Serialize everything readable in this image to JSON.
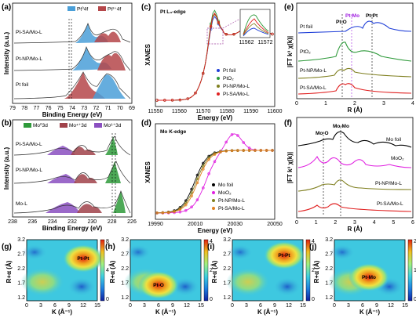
{
  "panels": {
    "a": {
      "label": "(a)",
      "xlabel": "Binding Energy (eV)",
      "ylabel": "Intensity (a.u.)",
      "xticks": [
        "79",
        "78",
        "77",
        "76",
        "75",
        "74",
        "73",
        "72",
        "71",
        "70",
        "69"
      ],
      "legend": [
        "Pt⁰4f",
        "Pt²⁺4f"
      ],
      "samples": [
        "Pt-SA/Mo-L",
        "Pt-NP/Mo-L",
        "Pt foil"
      ]
    },
    "b": {
      "label": "(b)",
      "xlabel": "Binding Energy (eV)",
      "ylabel": "Intensity (a.u.)",
      "xticks": [
        "238",
        "236",
        "234",
        "232",
        "230",
        "228",
        "226"
      ],
      "legend": [
        "Mo⁰3d",
        "Mo⁴⁺3d",
        "Mo⁶⁺3d"
      ],
      "samples": [
        "Pt-SA/Mo-L",
        "Pt-NP/Mo-L",
        "Mo-L"
      ]
    },
    "c": {
      "label": "(c)",
      "title": "Pt L₃-edge",
      "xlabel": "Energy (eV)",
      "ylabel": "XANES",
      "xticks": [
        "11550",
        "11560",
        "11570",
        "11580",
        "11590",
        "11600"
      ],
      "inset_ticks": [
        "11562",
        "11572"
      ],
      "legend": [
        "Pt foil",
        "PtO₂",
        "Pt-NP/Mo-L",
        "Pt-SA/Mo-L"
      ]
    },
    "d": {
      "label": "(d)",
      "title": "Mo K-edge",
      "xlabel": "Energy (eV)",
      "ylabel": "XANES",
      "xticks": [
        "19990",
        "20010",
        "20030",
        "20050"
      ],
      "legend": [
        "Mo foil",
        "MoO₂",
        "Pt-NP/Mo-L",
        "Pt-SA/Mo-L"
      ]
    },
    "e": {
      "label": "(e)",
      "xlabel": "R (Å)",
      "ylabel": "|FT k³ χ(k)|",
      "xticks": [
        "0",
        "1",
        "2",
        "3",
        "4"
      ],
      "markers": [
        "Pt-O",
        "Pt-Mo",
        "Pt-Pt"
      ],
      "samples": [
        "Pt foil",
        "PtO₂",
        "Pt-NP/Mo-L",
        "Pt-SA/Mo-L"
      ]
    },
    "f": {
      "label": "(f)",
      "xlabel": "R (Å)",
      "ylabel": "|FT k³ χ(k)|",
      "xticks": [
        "0",
        "1",
        "2",
        "3",
        "4",
        "5",
        "6"
      ],
      "markers": [
        "Mo-O",
        "Mo-Mo"
      ],
      "samples": [
        "Mo foil",
        "MoO₂",
        "Pt-NP/Mo-L",
        "Pt-SA/Mo-L"
      ]
    },
    "g": {
      "label": "(g)",
      "peak": "Pt-Pt",
      "xlabel": "K (Å⁻¹)",
      "ylabel": "R+α (Å)",
      "xticks": [
        "0",
        "3",
        "6",
        "9",
        "12",
        "15"
      ],
      "yticks": [
        "3.2",
        "2.7",
        "2.2",
        "1.7",
        "1.2"
      ],
      "cbar": [
        "8",
        "4",
        "0"
      ]
    },
    "h": {
      "label": "(h)",
      "peak": "Pt-O",
      "xlabel": "K (Å⁻¹)",
      "ylabel": "R+α (Å)",
      "xticks": [
        "0",
        "3",
        "6",
        "9",
        "12",
        "15"
      ],
      "yticks": [
        "3.2",
        "2.7",
        "2.2",
        "1.7",
        "1.2"
      ],
      "cbar": [
        "4",
        "2",
        "0"
      ]
    },
    "i": {
      "label": "(i)",
      "peak": "Pt-Pt",
      "xlabel": "K (Å⁻¹)",
      "ylabel": "R+α (Å)",
      "xticks": [
        "0",
        "3",
        "6",
        "9",
        "12",
        "15"
      ],
      "yticks": [
        "3.2",
        "2.7",
        "2.2",
        "1.7",
        "1.2"
      ],
      "cbar": [
        "4",
        "2",
        "0"
      ]
    },
    "j": {
      "label": "(j)",
      "peak": "Pt-Mo",
      "xlabel": "K (Å⁻¹)",
      "ylabel": "R+α (Å)",
      "xticks": [
        "0",
        "3",
        "6",
        "9",
        "12",
        "15"
      ],
      "yticks": [
        "3.2",
        "2.7",
        "2.2",
        "1.7",
        "1.2"
      ],
      "cbar": [
        "2",
        "1",
        "0"
      ]
    }
  },
  "colors": {
    "pt0": "#4a9fd8",
    "pt2": "#b5474a",
    "mo0": "#2e9a3a",
    "mo4": "#a0424a",
    "mo6": "#8a4fc0",
    "foil": "#1f3fd8",
    "pto2": "#2e9a3a",
    "np": "#7f7f1f",
    "sa": "#e02020",
    "mofoil": "#000000",
    "moo2": "#e020e0"
  },
  "chart_data": [
    {
      "type": "line",
      "panel": "c",
      "x_range": [
        11550,
        11600
      ],
      "series": [
        {
          "name": "Pt foil"
        },
        {
          "name": "PtO₂"
        },
        {
          "name": "Pt-NP/Mo-L"
        },
        {
          "name": "Pt-SA/Mo-L"
        }
      ]
    },
    {
      "type": "line",
      "panel": "d",
      "x_range": [
        19990,
        20050
      ],
      "series": [
        {
          "name": "Mo foil"
        },
        {
          "name": "MoO₂"
        },
        {
          "name": "Pt-NP/Mo-L"
        },
        {
          "name": "Pt-SA/Mo-L"
        }
      ]
    }
  ]
}
